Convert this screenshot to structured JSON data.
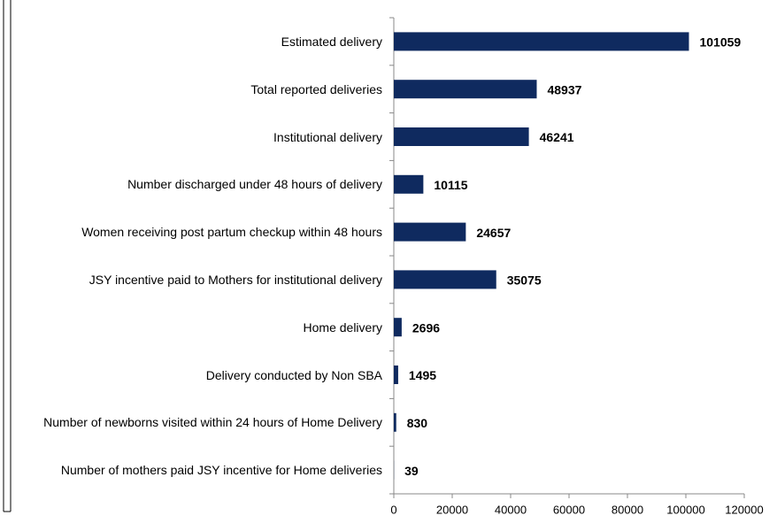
{
  "chart_data": {
    "type": "bar",
    "orientation": "horizontal",
    "categories": [
      "Estimated delivery",
      "Total reported deliveries",
      "Institutional delivery",
      "Number discharged under 48 hours of delivery",
      "Women receiving post partum checkup within 48 hours",
      "JSY incentive paid to Mothers for institutional delivery",
      "Home delivery",
      "Delivery conducted by Non SBA",
      "Number of newborns visited within 24 hours of Home Delivery",
      "Number of mothers paid JSY incentive for Home deliveries"
    ],
    "values": [
      101059,
      48937,
      46241,
      10115,
      24657,
      35075,
      2696,
      1495,
      830,
      39
    ],
    "color": "#0f2a5f",
    "xlim": [
      0,
      120000
    ],
    "xticks": [
      0,
      20000,
      40000,
      60000,
      80000,
      100000,
      120000
    ]
  }
}
